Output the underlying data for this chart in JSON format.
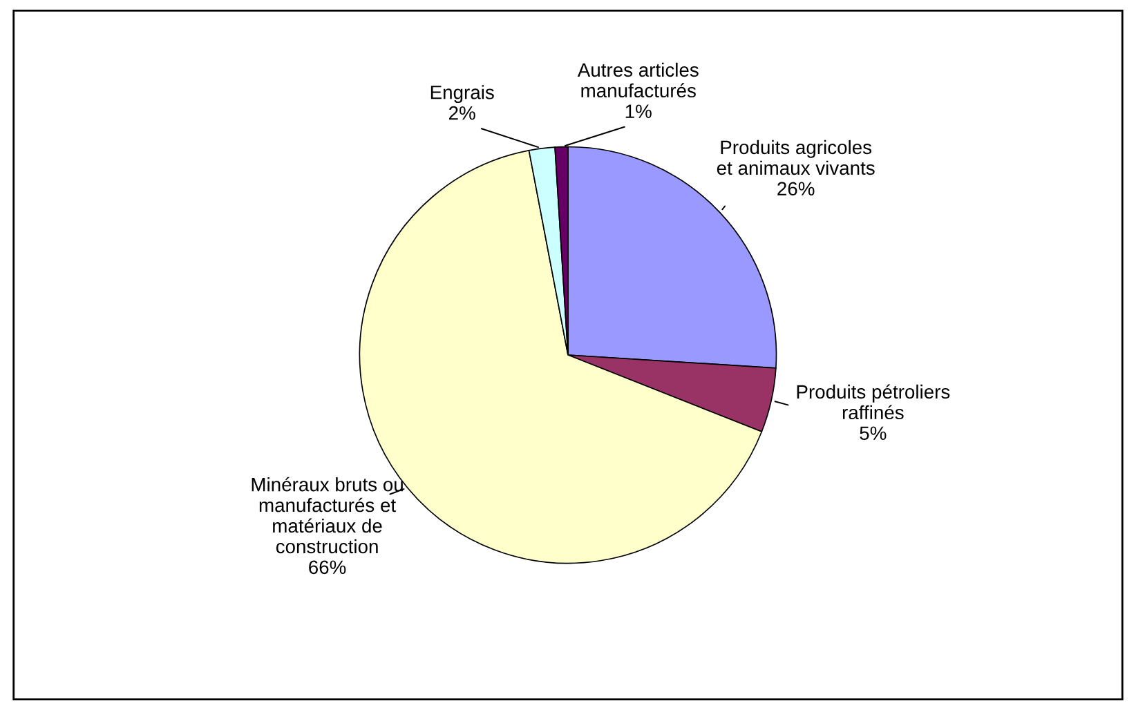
{
  "chart_data": {
    "type": "pie",
    "categories": [
      "Produits agricoles\net animaux vivants",
      "Produits pétroliers\nraffinés",
      "Minéraux bruts ou\nmanufacturés et\nmatériaux de\nconstruction",
      "Engrais",
      "Autres articles\nmanufacturés"
    ],
    "values": [
      26,
      5,
      66,
      2,
      1
    ],
    "value_labels": [
      "26%",
      "5%",
      "66%",
      "2%",
      "1%"
    ],
    "colors": [
      "#9999ff",
      "#993366",
      "#ffffcc",
      "#ccffff",
      "#660066"
    ]
  }
}
